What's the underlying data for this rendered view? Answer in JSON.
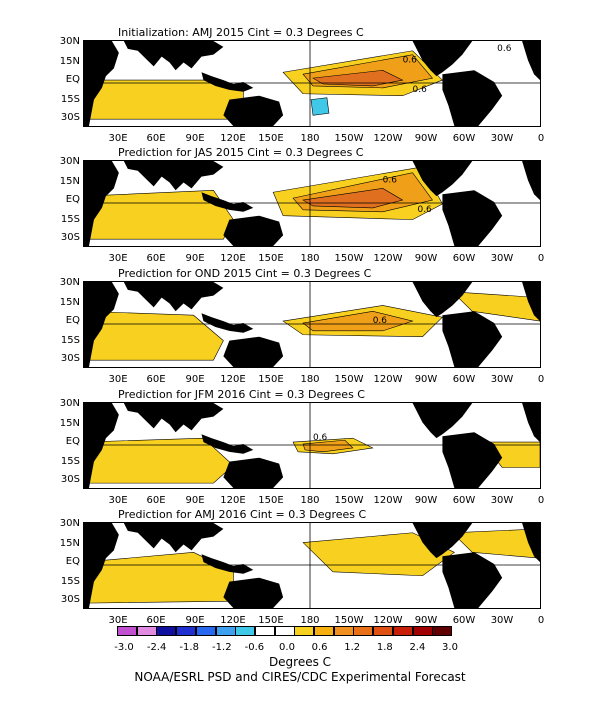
{
  "panels": [
    {
      "title": "Initialization: AMJ 2015  Cint = 0.3 Degrees C"
    },
    {
      "title": "Prediction for JAS 2015  Cint = 0.3 Degrees C"
    },
    {
      "title": "Prediction for OND 2015  Cint = 0.3 Degrees C"
    },
    {
      "title": "Prediction for JFM 2016  Cint = 0.3 Degrees C"
    },
    {
      "title": "Prediction for AMJ 2016  Cint = 0.3 Degrees C"
    }
  ],
  "lat_labels": [
    "30N",
    "15N",
    "EQ",
    "15S",
    "30S"
  ],
  "lon_labels": [
    "30E",
    "60E",
    "90E",
    "120E",
    "150E",
    "180",
    "150W",
    "120W",
    "90W",
    "60W",
    "30W",
    "0"
  ],
  "contour_labels": [
    [
      "0.6",
      "0.6",
      "0.6"
    ],
    [
      "0.6",
      "0.6"
    ],
    [
      "0.6"
    ],
    [
      "0.6"
    ],
    []
  ],
  "colorbar": {
    "ticks": [
      "-3.0",
      "-2.4",
      "-1.8",
      "-1.2",
      "-0.6",
      "0.0",
      "0.6",
      "1.2",
      "1.8",
      "2.4",
      "3.0"
    ],
    "colors": [
      "#c050d0",
      "#e08ae0",
      "#1010a0",
      "#2030d0",
      "#2868f0",
      "#40a0f0",
      "#40c8e8",
      "#ffffff",
      "#ffffff",
      "#f8d020",
      "#f8b010",
      "#f09020",
      "#e87018",
      "#e05010",
      "#c82008",
      "#a00000",
      "#600000"
    ],
    "units": "Degrees C"
  },
  "credit": "NOAA/ESRL PSD and CIRES/CDC Experimental Forecast",
  "colors": {
    "land": "#000000",
    "warm1": "#f8d020",
    "warm2": "#f0a018",
    "warm3": "#e07020",
    "cool": "#40c8e8"
  }
}
